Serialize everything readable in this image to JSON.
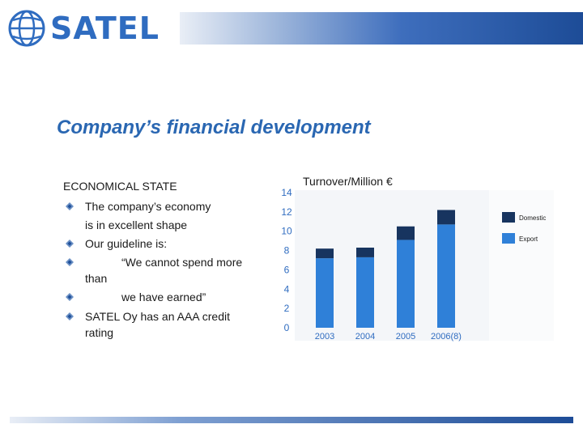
{
  "brand": {
    "name": "SATEL",
    "color": "#2f6cc0",
    "icon": "globe-icon"
  },
  "slide": {
    "title": "Company’s financial development"
  },
  "text": {
    "heading": "ECONOMICAL STATE",
    "lines": [
      "The company’s economy",
      "is in excellent shape",
      "Our guideline is:",
      "“We cannot spend more",
      "than",
      "we have earned”",
      "SATEL Oy has an AAA credit",
      "rating"
    ]
  },
  "chart_data": {
    "type": "bar",
    "title": "Turnover/Million €",
    "categories": [
      "2003",
      "2004",
      "2005",
      "2006(8)"
    ],
    "series": [
      {
        "name": "Export",
        "values": [
          7.2,
          7.3,
          9.1,
          10.7
        ],
        "color": "#2f80d8"
      },
      {
        "name": "Domestic",
        "values": [
          1.0,
          1.0,
          1.4,
          1.5
        ],
        "color": "#17345f"
      }
    ],
    "ylim": [
      0,
      14
    ],
    "yticks": [
      0,
      2,
      4,
      6,
      8,
      10,
      12,
      14
    ],
    "legend": [
      "Domestic",
      "Export"
    ],
    "legend_position": "right"
  }
}
